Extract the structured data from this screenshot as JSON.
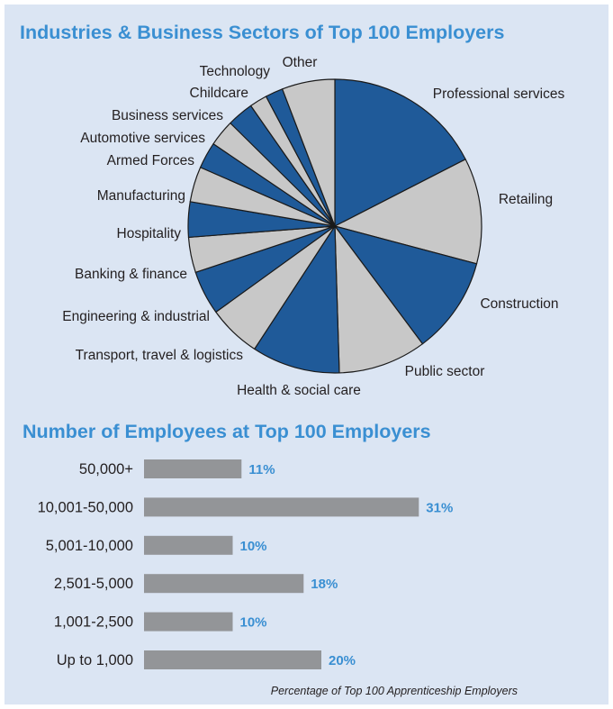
{
  "colors": {
    "panel_background": "#dbe5f3",
    "heading": "#3a8fd2",
    "pie_dark": "#1f5a99",
    "pie_light": "#c8c8c8",
    "bar": "#939598",
    "value_label": "#3a8fd2",
    "text": "#231f20"
  },
  "chart_data": [
    {
      "type": "pie",
      "title": "Industries & Business Sectors of Top 100 Employers",
      "start_angle_deg": 0,
      "direction": "clockwise",
      "slices": [
        {
          "label": "Professional services",
          "value": 18,
          "color": "dark"
        },
        {
          "label": "Retailing",
          "value": 12,
          "color": "light"
        },
        {
          "label": "Construction",
          "value": 11,
          "color": "dark"
        },
        {
          "label": "Public sector",
          "value": 10,
          "color": "light"
        },
        {
          "label": "Health & social care",
          "value": 10,
          "color": "dark"
        },
        {
          "label": "Transport, travel & logistics",
          "value": 6,
          "color": "light"
        },
        {
          "label": "Engineering & industrial",
          "value": 5,
          "color": "dark"
        },
        {
          "label": "Banking & finance",
          "value": 4,
          "color": "light"
        },
        {
          "label": "Hospitality",
          "value": 4,
          "color": "dark"
        },
        {
          "label": "Manufacturing",
          "value": 4,
          "color": "light"
        },
        {
          "label": "Armed Forces",
          "value": 3,
          "color": "dark"
        },
        {
          "label": "Automotive services",
          "value": 3,
          "color": "light"
        },
        {
          "label": "Business services",
          "value": 3,
          "color": "dark"
        },
        {
          "label": "Childcare",
          "value": 2,
          "color": "light"
        },
        {
          "label": "Technology",
          "value": 2,
          "color": "dark"
        },
        {
          "label": "Other",
          "value": 6,
          "color": "light"
        }
      ]
    },
    {
      "type": "bar",
      "orientation": "horizontal",
      "title": "Number of Employees at Top 100 Employers",
      "categories": [
        "50,000+",
        "10,001-50,000",
        "5,001-10,000",
        "2,501-5,000",
        "1,001-2,500",
        "Up to 1,000"
      ],
      "values": [
        11,
        31,
        10,
        18,
        10,
        20
      ],
      "value_labels": [
        "11%",
        "31%",
        "10%",
        "18%",
        "10%",
        "20%"
      ],
      "caption": "Percentage of Top 100 Apprenticeship Employers"
    }
  ]
}
